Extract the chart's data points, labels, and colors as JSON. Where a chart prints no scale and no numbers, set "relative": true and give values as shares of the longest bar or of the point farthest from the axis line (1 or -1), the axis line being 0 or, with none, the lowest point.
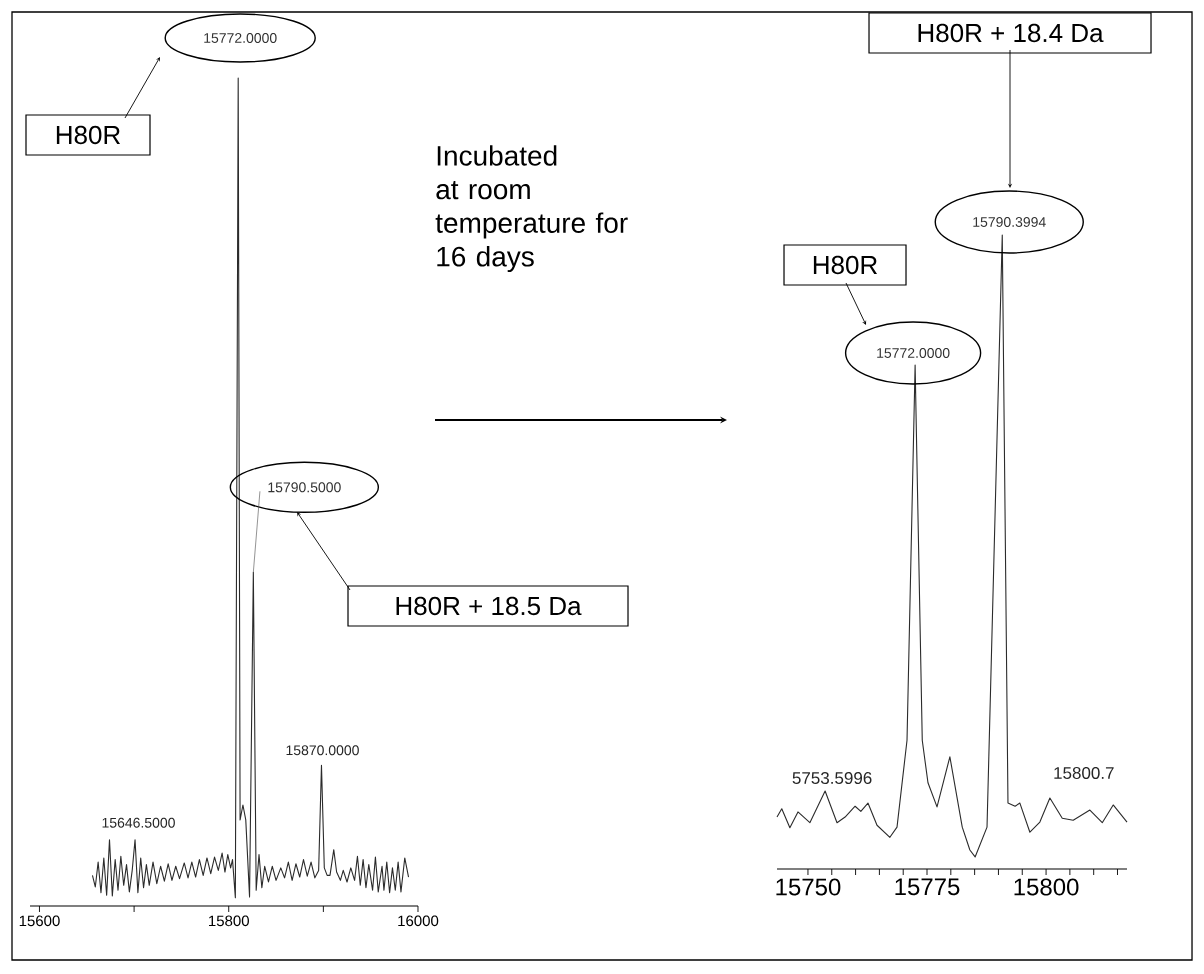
{
  "chart_data": [
    {
      "type": "line",
      "relative": true,
      "color": "#2b2b2b",
      "x": [
        15656,
        15659,
        15662,
        15665,
        15668,
        15671,
        15674,
        15677,
        15680,
        15683,
        15686,
        15689,
        15692,
        15695,
        15698,
        15701,
        15704,
        15707,
        15710,
        15713,
        15716,
        15720,
        15724,
        15728,
        15732,
        15736,
        15740,
        15744,
        15748,
        15753,
        15757,
        15761,
        15765,
        15769,
        15773,
        15777,
        15781,
        15785,
        15789,
        15793,
        15796,
        15799,
        15802,
        15804,
        15807,
        15810,
        15812,
        15815,
        15818,
        15822,
        15826,
        15829,
        15832,
        15835,
        15838,
        15842,
        15846,
        15850,
        15855,
        15859,
        15863,
        15867,
        15871,
        15875,
        15879,
        15883,
        15887,
        15891,
        15895,
        15898,
        15901,
        15904,
        15907,
        15911,
        15914,
        15918,
        15921,
        15925,
        15929,
        15933,
        15936,
        15939,
        15942,
        15945,
        15948,
        15952,
        15955,
        15958,
        15962,
        15964,
        15967,
        15970,
        15973,
        15976,
        15979,
        15982,
        15986,
        15990
      ],
      "values": [
        0.037,
        0.023,
        0.053,
        0.016,
        0.058,
        0.013,
        0.08,
        0.012,
        0.056,
        0.019,
        0.06,
        0.025,
        0.05,
        0.017,
        0.043,
        0.08,
        0.016,
        0.058,
        0.022,
        0.05,
        0.025,
        0.053,
        0.027,
        0.048,
        0.03,
        0.051,
        0.031,
        0.048,
        0.033,
        0.052,
        0.034,
        0.053,
        0.035,
        0.056,
        0.037,
        0.058,
        0.039,
        0.059,
        0.043,
        0.064,
        0.041,
        0.062,
        0.046,
        0.056,
        0.01,
        1,
        0.104,
        0.122,
        0.104,
        0.011,
        0.403,
        0.019,
        0.062,
        0.022,
        0.048,
        0.029,
        0.048,
        0.031,
        0.046,
        0.034,
        0.053,
        0.031,
        0.051,
        0.035,
        0.056,
        0.036,
        0.053,
        0.034,
        0.043,
        0.17,
        0.046,
        0.037,
        0.037,
        0.068,
        0.041,
        0.031,
        0.043,
        0.029,
        0.046,
        0.031,
        0.06,
        0.025,
        0.056,
        0.022,
        0.05,
        0.019,
        0.059,
        0.017,
        0.048,
        0.019,
        0.053,
        0.016,
        0.046,
        0.019,
        0.053,
        0.017,
        0.058,
        0.035
      ],
      "xlim": [
        15590,
        16000
      ],
      "xticks": [
        15600,
        {
          "value": 15700,
          "label": null
        },
        15800,
        {
          "value": 15900,
          "label": null
        },
        16000
      ],
      "annotations": [
        {
          "text": "15772.0000",
          "x": 15810,
          "y": 1
        },
        {
          "text": "15790.5000",
          "x": 15826,
          "y": 0.403
        },
        {
          "text": "15870.0000",
          "x": 15898,
          "y": 0.17
        },
        {
          "text": "15646.5000",
          "x": 15674,
          "y": 0.08
        },
        "H80R",
        "H80R + 18.5 Da",
        "Incubated at room temperature for 16 days"
      ]
    },
    {
      "type": "line",
      "relative": true,
      "color": "#2b2b2b",
      "x": [
        15743.5,
        15744.5,
        15746.2,
        15747.9,
        15750.4,
        15753.6,
        15756.1,
        15757.8,
        15759.9,
        15761.1,
        15762.6,
        15764.5,
        15767.2,
        15768.7,
        15770.8,
        15772.5,
        15774.0,
        15775.2,
        15777.1,
        15779.8,
        15782.4,
        15784.0,
        15785.1,
        15787.6,
        15790.8,
        15792.0,
        15793.5,
        15794.5,
        15796.6,
        15798.7,
        15800.8,
        15803.4,
        15805.7,
        15809.2,
        15811.8,
        15814.1,
        15817.0
      ],
      "values": [
        0.082,
        0.095,
        0.065,
        0.09,
        0.073,
        0.123,
        0.073,
        0.082,
        0.099,
        0.091,
        0.104,
        0.069,
        0.05,
        0.066,
        0.203,
        0.795,
        0.203,
        0.136,
        0.098,
        0.177,
        0.066,
        0.03,
        0.019,
        0.066,
        1,
        0.104,
        0.099,
        0.104,
        0.058,
        0.074,
        0.112,
        0.08,
        0.077,
        0.093,
        0.073,
        0.101,
        0.074
      ],
      "xlim": [
        15743.5,
        15817
      ],
      "xticks": [
        15750,
        {
          "value": 15755,
          "label": null
        },
        {
          "value": 15760,
          "label": null
        },
        {
          "value": 15765,
          "label": null
        },
        {
          "value": 15770,
          "label": null
        },
        15775,
        {
          "value": 15780,
          "label": null
        },
        {
          "value": 15785,
          "label": null
        },
        {
          "value": 15790,
          "label": null
        },
        {
          "value": 15795,
          "label": null
        },
        15800,
        {
          "value": 15805,
          "label": null
        },
        {
          "value": 15810,
          "label": null
        },
        {
          "value": 15815,
          "label": null
        }
      ],
      "annotations": [
        {
          "text": "15772.0000",
          "x": 15772.5,
          "y": 0.795
        },
        {
          "text": "15790.3994",
          "x": 15790.8,
          "y": 1
        },
        {
          "text": "5753.5996",
          "x": 15753.6,
          "y": 0.123
        },
        {
          "text": "15800.7",
          "x": 15800.8,
          "y": 0.112
        },
        "H80R",
        "H80R + 18.4 Da"
      ]
    }
  ]
}
